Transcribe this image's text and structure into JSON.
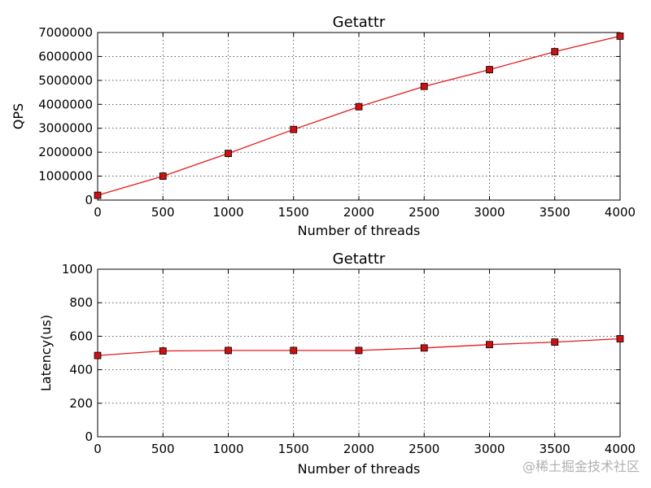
{
  "watermark": "@稀土掘金技术社区",
  "chart_data": [
    {
      "type": "line",
      "title": "Getattr",
      "xlabel": "Number of threads",
      "ylabel": "QPS",
      "xlim": [
        0,
        4000
      ],
      "ylim": [
        0,
        7000000
      ],
      "xticks": [
        0,
        500,
        1000,
        1500,
        2000,
        2500,
        3000,
        3500,
        4000
      ],
      "yticks": [
        0,
        1000000,
        2000000,
        3000000,
        4000000,
        5000000,
        6000000,
        7000000
      ],
      "grid": true,
      "marker": "square",
      "colors": {
        "line": "#e41a1c",
        "marker_fill": "#cc1111",
        "marker_edge": "#000000"
      },
      "series": [
        {
          "x": [
            0,
            500,
            1000,
            1500,
            2000,
            2500,
            3000,
            3500,
            4000
          ],
          "values": [
            200000,
            1000000,
            1950000,
            2950000,
            3900000,
            4750000,
            5450000,
            6200000,
            6850000
          ]
        }
      ]
    },
    {
      "type": "line",
      "title": "Getattr",
      "xlabel": "Number of threads",
      "ylabel": "Latency(us)",
      "xlim": [
        0,
        4000
      ],
      "ylim": [
        0,
        1000
      ],
      "xticks": [
        0,
        500,
        1000,
        1500,
        2000,
        2500,
        3000,
        3500,
        4000
      ],
      "yticks": [
        0,
        200,
        400,
        600,
        800,
        1000
      ],
      "grid": true,
      "marker": "square",
      "colors": {
        "line": "#e41a1c",
        "marker_fill": "#cc1111",
        "marker_edge": "#000000"
      },
      "series": [
        {
          "x": [
            0,
            500,
            1000,
            1500,
            2000,
            2500,
            3000,
            3500,
            4000
          ],
          "values": [
            485,
            512,
            515,
            515,
            515,
            530,
            550,
            565,
            585
          ]
        }
      ]
    }
  ]
}
